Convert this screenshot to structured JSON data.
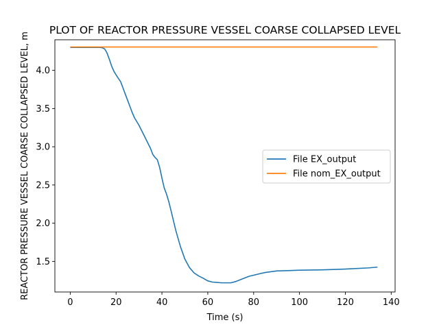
{
  "chart_data": {
    "type": "line",
    "title": "PLOT OF REACTOR PRESSURE VESSEL COARSE COLLAPSED LEVEL",
    "xlabel": "Time (s)",
    "ylabel": "REACTOR PRESSURE VESSEL COARSE COLLAPSED LEVEL, m",
    "xlim": [
      -6.7,
      141.7
    ],
    "ylim": [
      1.1,
      4.4
    ],
    "xticks": [
      0,
      20,
      40,
      60,
      80,
      100,
      120,
      140
    ],
    "yticks": [
      1.5,
      2.0,
      2.5,
      3.0,
      3.5,
      4.0
    ],
    "xtick_labels": [
      "0",
      "20",
      "40",
      "60",
      "80",
      "100",
      "120",
      "140"
    ],
    "ytick_labels": [
      "1.5",
      "2.0",
      "2.5",
      "3.0",
      "3.5",
      "4.0"
    ],
    "grid": false,
    "legend_position": "center-right",
    "series": [
      {
        "name": "File EX_output",
        "color": "#1f77b4",
        "x": [
          0,
          5,
          10,
          13,
          14,
          15,
          16,
          17,
          18,
          19,
          20,
          22,
          24,
          26,
          27,
          28,
          30,
          32,
          34,
          35,
          36,
          37,
          38,
          39,
          40,
          41,
          42,
          43,
          44,
          46,
          48,
          50,
          52,
          54,
          56,
          58,
          60,
          62,
          64,
          66,
          68,
          70,
          72,
          75,
          78,
          80,
          85,
          90,
          95,
          100,
          110,
          120,
          130,
          134
        ],
        "y": [
          4.3,
          4.3,
          4.3,
          4.3,
          4.295,
          4.28,
          4.23,
          4.15,
          4.06,
          3.99,
          3.94,
          3.85,
          3.69,
          3.53,
          3.45,
          3.38,
          3.28,
          3.16,
          3.04,
          2.98,
          2.9,
          2.86,
          2.83,
          2.73,
          2.59,
          2.46,
          2.38,
          2.28,
          2.16,
          1.91,
          1.7,
          1.53,
          1.42,
          1.35,
          1.31,
          1.28,
          1.245,
          1.23,
          1.225,
          1.22,
          1.22,
          1.22,
          1.235,
          1.27,
          1.305,
          1.32,
          1.355,
          1.375,
          1.38,
          1.385,
          1.39,
          1.4,
          1.415,
          1.425
        ]
      },
      {
        "name": "File nom_EX_output",
        "color": "#ff7f0e",
        "x": [
          0,
          134
        ],
        "y": [
          4.305,
          4.305
        ]
      }
    ]
  }
}
